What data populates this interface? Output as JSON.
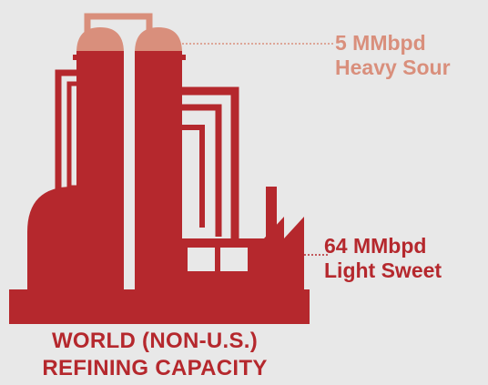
{
  "colors": {
    "background": "#e8e8e8",
    "refinery_main": "#b5282d",
    "heavy_sour_accent": "#d98f7c",
    "light_sweet_text": "#b5282d"
  },
  "icon": "oil-refinery-icon",
  "annotations": {
    "heavy_sour": {
      "amount": "5 MMbpd",
      "type": "Heavy Sour"
    },
    "light_sweet": {
      "amount": "64 MMbpd",
      "type": "Light Sweet"
    }
  },
  "caption": {
    "line1": "WORLD (NON-U.S.)",
    "line2": "REFINING CAPACITY"
  }
}
